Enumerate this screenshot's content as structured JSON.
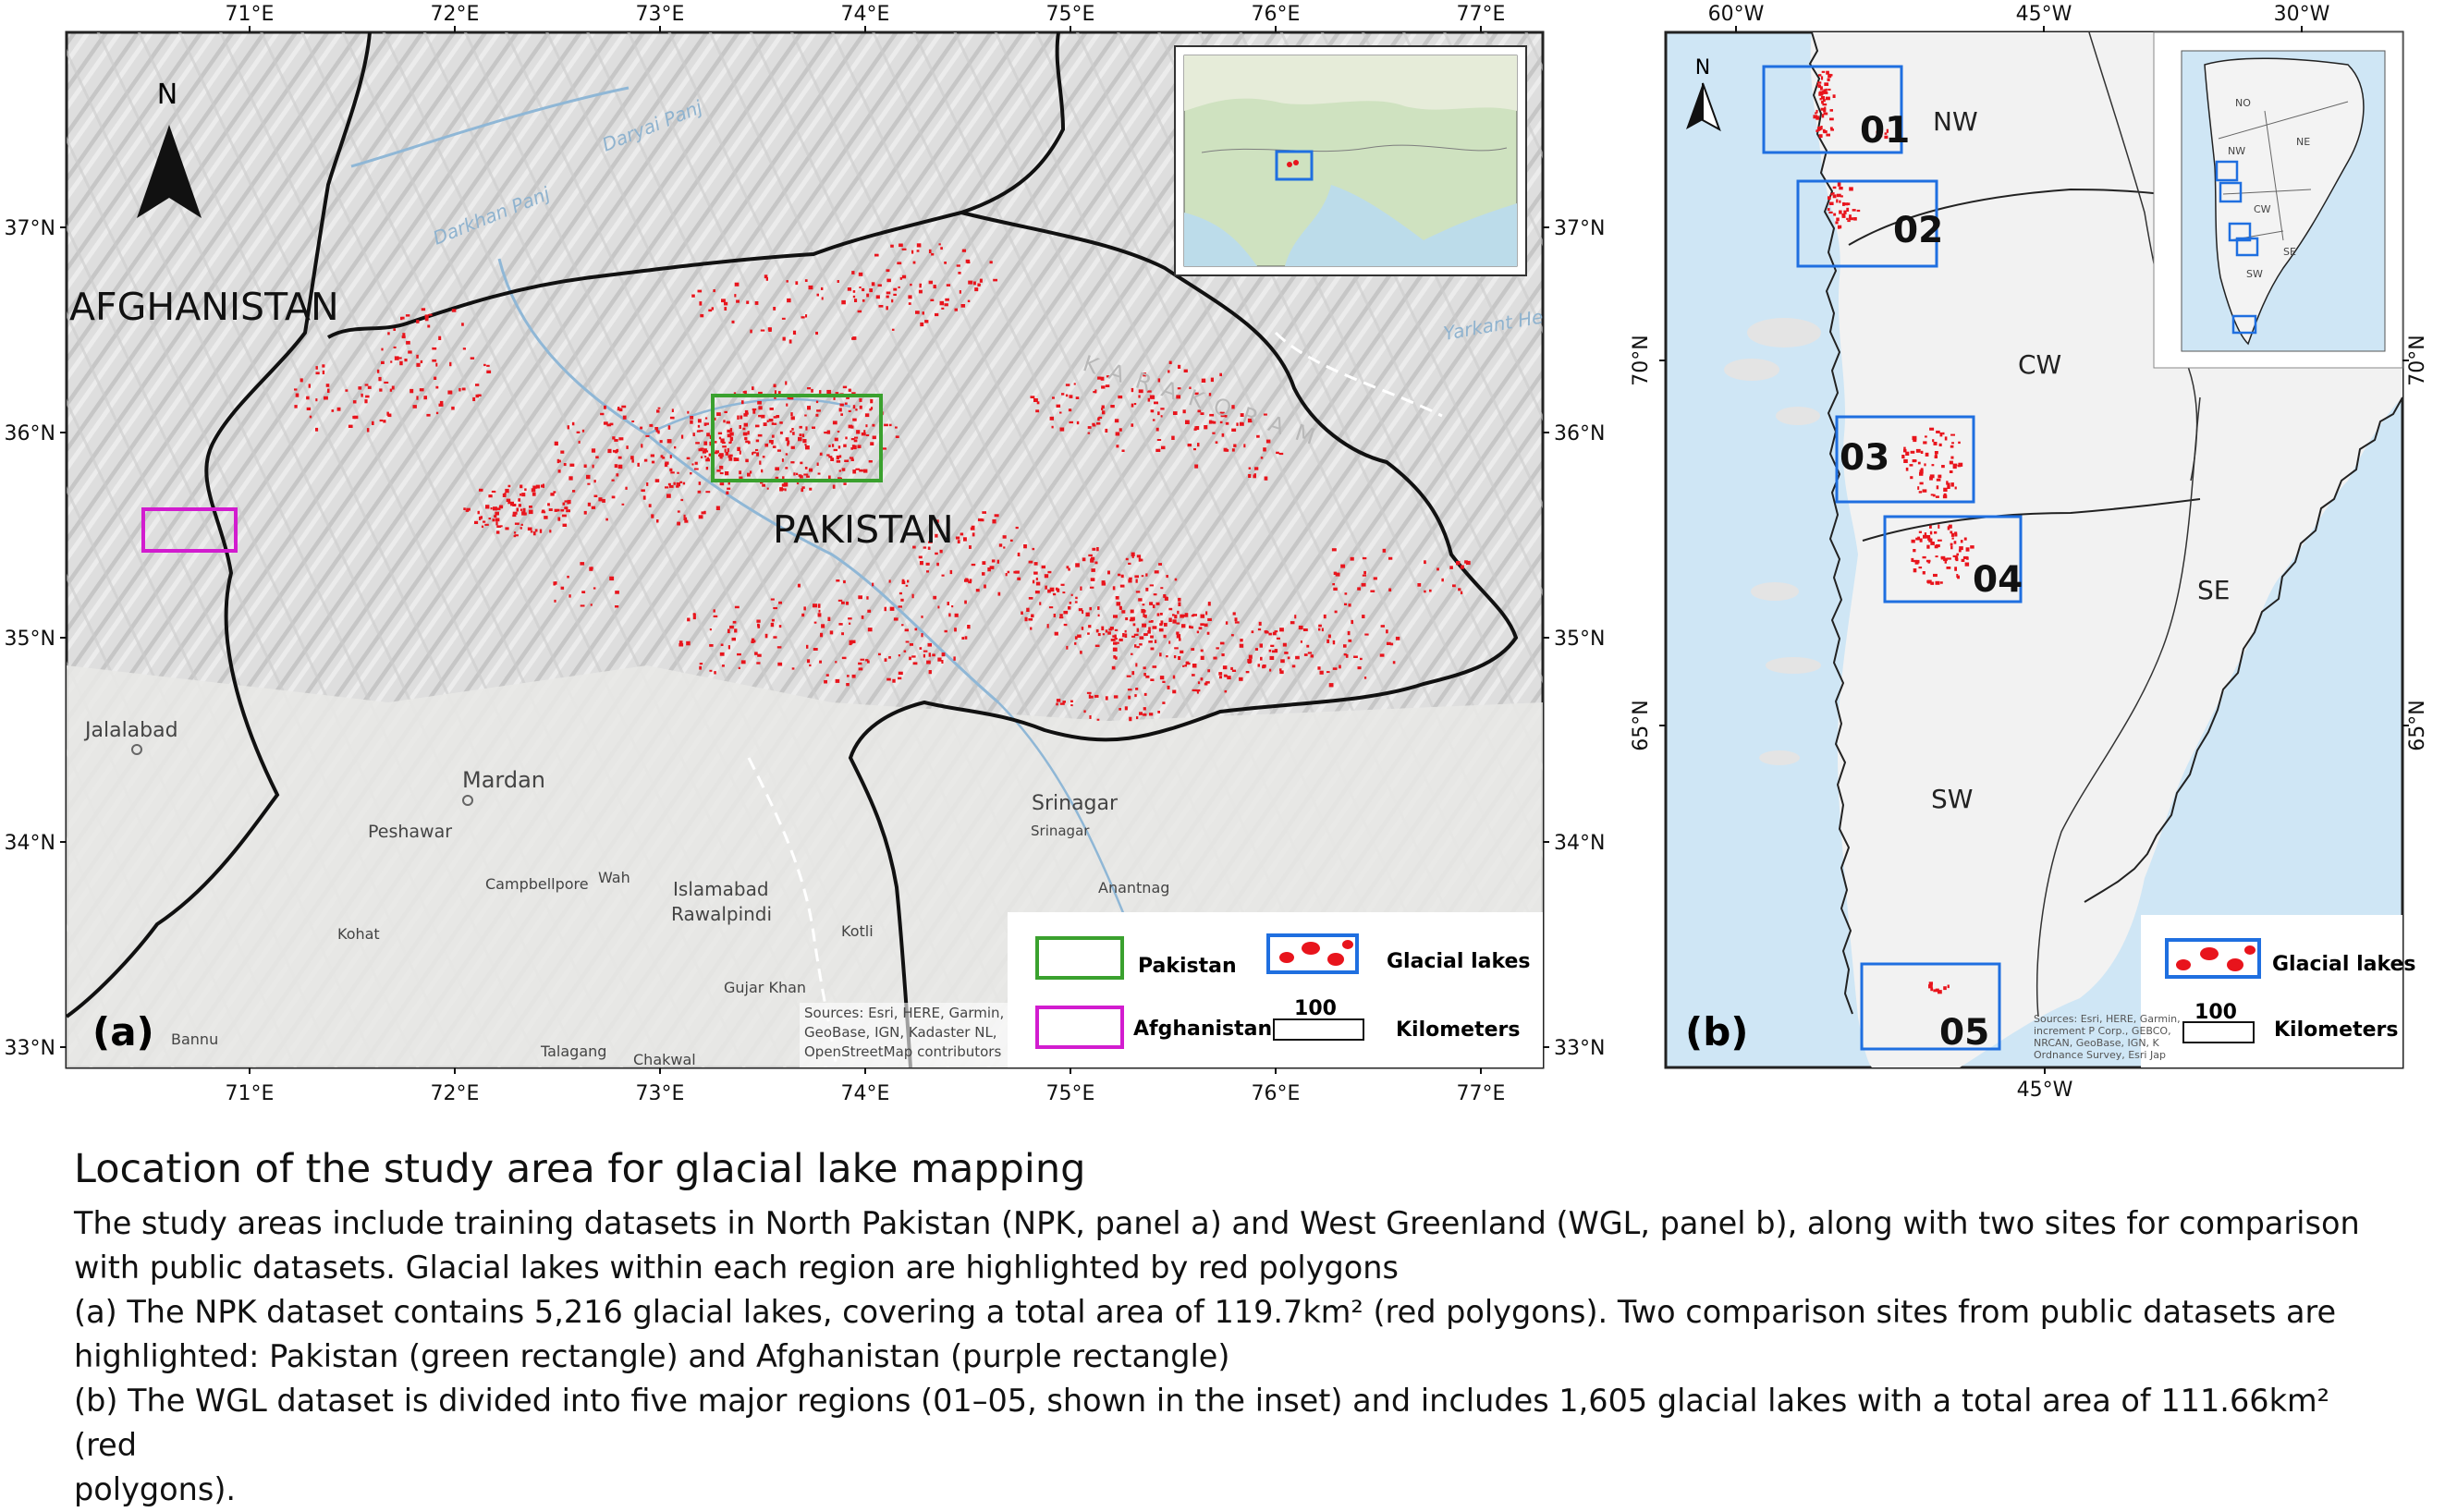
{
  "panel_a": {
    "label": "(a)",
    "top_ticks": [
      "71°E",
      "72°E",
      "73°E",
      "74°E",
      "75°E",
      "76°E",
      "77°E"
    ],
    "bottom_ticks": [
      "71°E",
      "72°E",
      "73°E",
      "74°E",
      "75°E",
      "76°E",
      "77°E"
    ],
    "left_ticks": [
      "37°N",
      "36°N",
      "35°N",
      "34°N",
      "33°N"
    ],
    "right_ticks": [
      "37°N",
      "36°N",
      "35°N",
      "34°N",
      "33°N"
    ],
    "north_label": "N",
    "country_labels": [
      "AFGHANISTAN",
      "PAKISTAN"
    ],
    "place_labels": [
      "Jalalabad",
      "Mardan",
      "Peshawar",
      "Srinagar",
      "Islamabad",
      "Rawalpindi",
      "Campbellpore",
      "Wah",
      "Kohat",
      "Gujar Khan",
      "Bannu",
      "Talagang",
      "Chakwal",
      "Anantnag",
      "Kotli",
      "Srinagar"
    ],
    "region_labels": [
      "Darkhan Panj",
      "Daryai Panj",
      "Yarkant He",
      "KARAKORAM"
    ],
    "legend": {
      "pakistan": "Pakistan",
      "afghanistan": "Afghanistan",
      "glacial_lakes": "Glacial lakes",
      "scale_value": "100",
      "scale_unit": "Kilometers"
    },
    "attribution": [
      "Sources: Esri, HERE, Garmin,",
      "GeoBase, IGN, Kadaster NL,",
      "OpenStreetMap contributors"
    ]
  },
  "panel_b": {
    "label": "(b)",
    "top_ticks": [
      "60°W",
      "45°W",
      "30°W"
    ],
    "bottom_ticks": [
      "45°W"
    ],
    "left_ticks": [
      "70°N",
      "65°N"
    ],
    "right_ticks": [
      "70°N",
      "65°N"
    ],
    "north_label": "N",
    "region_labels": [
      "NW",
      "CW",
      "SE",
      "SW"
    ],
    "box_labels": [
      "01",
      "02",
      "03",
      "04",
      "05"
    ],
    "inset_labels": [
      "NO",
      "NE",
      "NW",
      "CW",
      "SE",
      "SW"
    ],
    "legend": {
      "glacial_lakes": "Glacial lakes",
      "scale_value": "100",
      "scale_unit": "Kilometers"
    },
    "attribution": [
      "Sources: Esri, HERE, Garmin,",
      "increment P Corp., GEBCO,",
      "NRCAN, GeoBase, IGN, K",
      "Ordnance Survey, Esri Jap"
    ]
  },
  "caption": {
    "title": "Location of the study area for glacial lake mapping",
    "lines": [
      "The study areas include training datasets in North Pakistan (NPK, panel a) and West Greenland (WGL, panel b), along with two sites for comparison",
      "with public datasets. Glacial lakes within each region are highlighted by red polygons",
      "(a) The NPK dataset contains 5,216 glacial lakes, covering a total area of 119.7km² (red polygons). Two comparison sites from public datasets are",
      "highlighted: Pakistan (green rectangle) and Afghanistan (purple rectangle)",
      "(b) The WGL dataset is divided into five major regions (01–05, shown in the inset) and includes 1,605 glacial lakes with a total area of 111.66km² (red",
      "polygons)."
    ]
  },
  "colors": {
    "lakes": "#e8141c",
    "pakistan_box": "#3aa12e",
    "afghanistan_box": "#d21ccf",
    "region_box": "#1f6fe0",
    "sea": "#cfe6f5",
    "terrain": "#dcdcdc"
  }
}
